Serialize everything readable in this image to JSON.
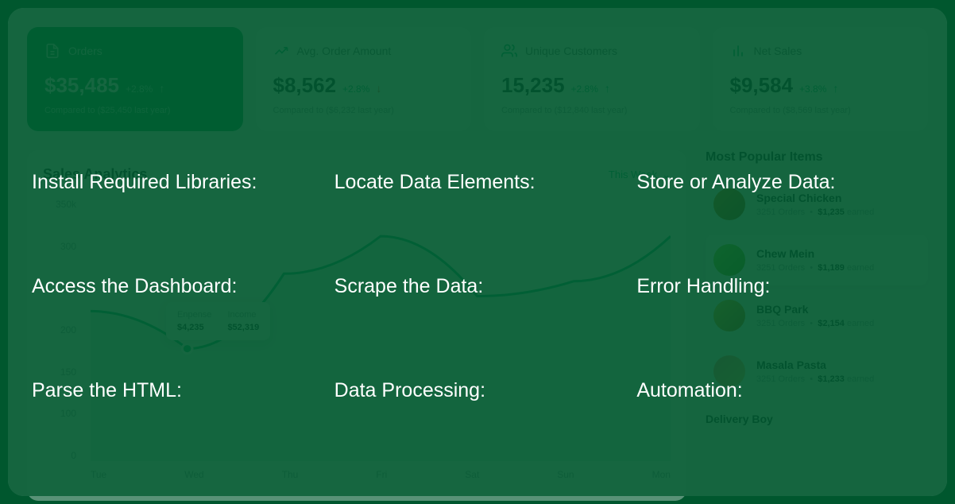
{
  "stats": [
    {
      "icon": "document",
      "title": "Orders",
      "value": "$35,485",
      "pct": "+2.8%",
      "dir": "up",
      "compare": "Compared to ($25,450 last year)",
      "active": true
    },
    {
      "icon": "chart",
      "title": "Avg. Order Amount",
      "value": "$8,562",
      "pct": "+2.8%",
      "dir": "down",
      "compare": "Compared to ($6,232 last year)",
      "active": false
    },
    {
      "icon": "users",
      "title": "Unique Customers",
      "value": "15,235",
      "pct": "+2.8%",
      "dir": "up",
      "compare": "Compared to ($12,840 last year)",
      "active": false
    },
    {
      "icon": "bars",
      "title": "Net Sales",
      "value": "$9,584",
      "pct": "+3.8%",
      "dir": "up",
      "compare": "Compared to ($8,569 last year)",
      "active": false
    }
  ],
  "chart": {
    "title": "Sales Analytics",
    "period": "This Week",
    "y_labels": [
      "350k",
      "300",
      "250",
      "200",
      "150",
      "100",
      "0"
    ],
    "x_labels": [
      "Tue",
      "Wed",
      "Thu",
      "Fri",
      "Sat",
      "Sun",
      "Mon"
    ],
    "line_points": [
      [
        0,
        200
      ],
      [
        1,
        150
      ],
      [
        2,
        250
      ],
      [
        3,
        300
      ],
      [
        4,
        220
      ],
      [
        5,
        240
      ],
      [
        6,
        300
      ]
    ],
    "ylim": [
      0,
      350
    ],
    "line_color": "#10b981",
    "fill_color": "rgba(16,185,129,0.15)",
    "marker_index": 1,
    "tooltip": {
      "expense_label": "Enpense",
      "expense_value": "$4,235",
      "income_label": "Income",
      "income_value": "$52,319"
    }
  },
  "popular": {
    "title": "Most Popular Items",
    "items": [
      {
        "name": "Special Chicken",
        "orders": "3251 Orders",
        "earned": "$1,235",
        "earned_suffix": "earned",
        "highlighted": false
      },
      {
        "name": "Chew Mein",
        "orders": "3251 Orders",
        "earned": "$1,189",
        "earned_suffix": "earned",
        "highlighted": true
      },
      {
        "name": "BBQ Park",
        "orders": "3251 Orders",
        "earned": "$2,154",
        "earned_suffix": "earned",
        "highlighted": false
      },
      {
        "name": "Masala Pasta",
        "orders": "3251 Orders",
        "earned": "$1,233",
        "earned_suffix": "earned",
        "highlighted": false
      }
    ]
  },
  "delivery_title": "Delivery Boy",
  "overlay": {
    "items": [
      "Install Required Libraries:",
      "Locate Data Elements:",
      "Store or Analyze Data:",
      "Access the Dashboard:",
      "Scrape the Data:",
      "Error Handling:",
      "Parse the HTML:",
      "Data Processing:",
      "Automation:"
    ]
  }
}
